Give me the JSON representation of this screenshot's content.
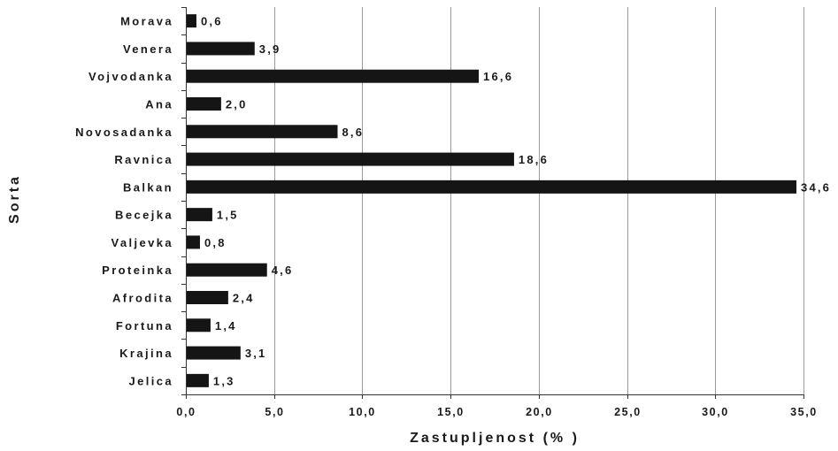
{
  "chart_data": {
    "type": "bar",
    "orientation": "horizontal",
    "title": "",
    "xlabel": "Zastupljenost (% )",
    "ylabel": "Sorta",
    "categories": [
      "Morava",
      "Venera",
      "Vojvodanka",
      "Ana",
      "Novosadanka",
      "Ravnica",
      "Balkan",
      "Becejka",
      "Valjevka",
      "Proteinka",
      "Afrodita",
      "Fortuna",
      "Krajina",
      "Jelica"
    ],
    "values": [
      0.6,
      3.9,
      16.6,
      2.0,
      8.6,
      18.6,
      34.6,
      1.5,
      0.8,
      4.6,
      2.4,
      1.4,
      3.1,
      1.3
    ],
    "value_labels": [
      "0,6",
      "3,9",
      "16,6",
      "2,0",
      "8,6",
      "18,6",
      "34,6",
      "1,5",
      "0,8",
      "4,6",
      "2,4",
      "1,4",
      "3,1",
      "1,3"
    ],
    "xlim": [
      0,
      35
    ],
    "xticks": [
      0,
      5,
      10,
      15,
      20,
      25,
      30,
      35
    ],
    "xtick_labels": [
      "0,0",
      "5,0",
      "10,0",
      "15,0",
      "20,0",
      "25,0",
      "30,0",
      "35,0"
    ],
    "grid": "vertical",
    "legend": "none",
    "bar_color": "#151515",
    "grid_color": "#9a9a9a"
  }
}
